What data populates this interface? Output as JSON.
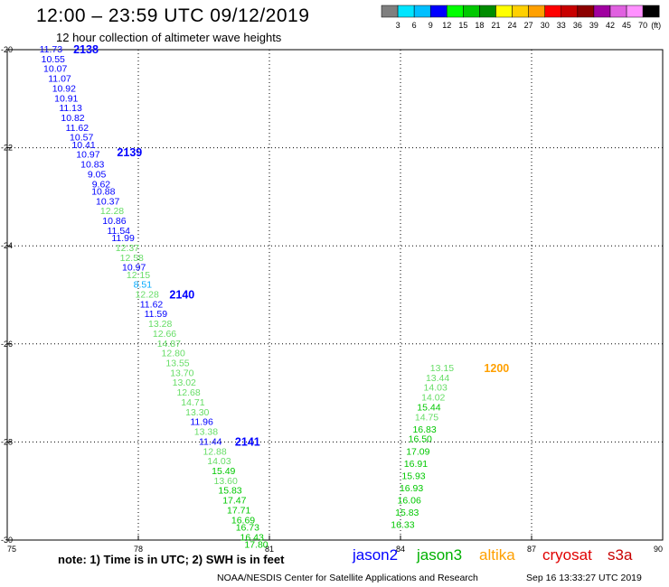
{
  "header": {
    "title": "12:00 – 23:59 UTC 09/12/2019",
    "subtitle": "12 hour collection of altimeter wave heights"
  },
  "colorbar": {
    "labels": [
      "3",
      "6",
      "9",
      "12",
      "15",
      "18",
      "21",
      "24",
      "27",
      "30",
      "33",
      "36",
      "39",
      "42",
      "45",
      "70"
    ],
    "unit": "(ft)",
    "colors": [
      "#7f7f7f",
      "#00e5ff",
      "#00bfff",
      "#0000ff",
      "#00ff00",
      "#00c800",
      "#008c00",
      "#ffff00",
      "#ffd000",
      "#ffa000",
      "#ff0000",
      "#c80000",
      "#8c0000",
      "#a000a0",
      "#e060e0",
      "#ff90ff",
      "#000000"
    ]
  },
  "legend": {
    "jason2": {
      "label": "jason2",
      "color": "#0000ff"
    },
    "jason3": {
      "label": "jason3",
      "color": "#00b000"
    },
    "altika": {
      "label": "altika",
      "color": "#ffa000"
    },
    "cryosat": {
      "label": "cryosat",
      "color": "#e00000"
    },
    "s3a": {
      "label": "s3a",
      "color": "#c80000"
    }
  },
  "footer": {
    "note": "note:  1) Time is in UTC;  2) SWH is in feet",
    "credit": "NOAA/NESDIS Center for Satellite Applications and Research",
    "timestamp": "Sep 16 13:33:27 UTC 2019"
  },
  "chart_data": {
    "type": "scatter",
    "title": "12:00 – 23:59 UTC 09/12/2019",
    "subtitle": "12 hour collection of altimeter wave heights",
    "xlim": [
      75,
      90
    ],
    "ylim": [
      -30,
      -20
    ],
    "x_ticks": [
      "75",
      "78",
      "81",
      "84",
      "87",
      "90"
    ],
    "y_ticks": [
      "-20",
      "-22",
      "-24",
      "-26",
      "-28",
      "-30"
    ],
    "grid": true,
    "passes": [
      {
        "label": "2138",
        "lon": 76.8,
        "lat": -20.0,
        "color": "#0000ff"
      },
      {
        "label": "2139",
        "lon": 77.8,
        "lat": -22.1,
        "color": "#0000ff"
      },
      {
        "label": "2140",
        "lon": 79.0,
        "lat": -25.0,
        "color": "#0000ff"
      },
      {
        "label": "2141",
        "lon": 80.5,
        "lat": -28.0,
        "color": "#0000ff"
      },
      {
        "label": "1200",
        "lon": 86.2,
        "lat": -26.5,
        "color": "#ffa000"
      }
    ],
    "points": [
      {
        "lon": 76.0,
        "lat": -20.0,
        "value": "11.73",
        "color": "#0000ff"
      },
      {
        "lon": 76.05,
        "lat": -20.2,
        "value": "10.55",
        "color": "#0000ff"
      },
      {
        "lon": 76.1,
        "lat": -20.4,
        "value": "10.07",
        "color": "#0000ff"
      },
      {
        "lon": 76.2,
        "lat": -20.6,
        "value": "11.07",
        "color": "#0000ff"
      },
      {
        "lon": 76.3,
        "lat": -20.8,
        "value": "10.92",
        "color": "#0000ff"
      },
      {
        "lon": 76.35,
        "lat": -21.0,
        "value": "10.91",
        "color": "#0000ff"
      },
      {
        "lon": 76.45,
        "lat": -21.2,
        "value": "11.13",
        "color": "#0000ff"
      },
      {
        "lon": 76.5,
        "lat": -21.4,
        "value": "10.82",
        "color": "#0000ff"
      },
      {
        "lon": 76.6,
        "lat": -21.6,
        "value": "11.62",
        "color": "#0000ff"
      },
      {
        "lon": 76.7,
        "lat": -21.8,
        "value": "10.57",
        "color": "#0000ff"
      },
      {
        "lon": 76.75,
        "lat": -21.95,
        "value": "10.41",
        "color": "#0000ff"
      },
      {
        "lon": 76.85,
        "lat": -22.15,
        "value": "10.97",
        "color": "#0000ff"
      },
      {
        "lon": 76.95,
        "lat": -22.35,
        "value": "10.83",
        "color": "#0000ff"
      },
      {
        "lon": 77.05,
        "lat": -22.55,
        "value": "9.05",
        "color": "#0000ff"
      },
      {
        "lon": 77.15,
        "lat": -22.75,
        "value": "9.62",
        "color": "#0000ff"
      },
      {
        "lon": 77.2,
        "lat": -22.9,
        "value": "10.88",
        "color": "#0000ff"
      },
      {
        "lon": 77.3,
        "lat": -23.1,
        "value": "10.37",
        "color": "#0000ff"
      },
      {
        "lon": 77.4,
        "lat": -23.3,
        "value": "12.28",
        "color": "#66dd66"
      },
      {
        "lon": 77.45,
        "lat": -23.5,
        "value": "10.86",
        "color": "#0000ff"
      },
      {
        "lon": 77.55,
        "lat": -23.7,
        "value": "11.54",
        "color": "#0000ff"
      },
      {
        "lon": 77.65,
        "lat": -23.85,
        "value": "11.99",
        "color": "#0000ff"
      },
      {
        "lon": 77.75,
        "lat": -24.05,
        "value": "12.37",
        "color": "#66dd66"
      },
      {
        "lon": 77.85,
        "lat": -24.25,
        "value": "12.58",
        "color": "#66dd66"
      },
      {
        "lon": 77.9,
        "lat": -24.45,
        "value": "10.97",
        "color": "#0000ff"
      },
      {
        "lon": 78.0,
        "lat": -24.6,
        "value": "12.15",
        "color": "#66dd66"
      },
      {
        "lon": 78.1,
        "lat": -24.8,
        "value": "8.51",
        "color": "#00aaff"
      },
      {
        "lon": 78.2,
        "lat": -25.0,
        "value": "12.28",
        "color": "#66dd66"
      },
      {
        "lon": 78.3,
        "lat": -25.2,
        "value": "11.62",
        "color": "#0000ff"
      },
      {
        "lon": 78.4,
        "lat": -25.4,
        "value": "11.59",
        "color": "#0000ff"
      },
      {
        "lon": 78.5,
        "lat": -25.6,
        "value": "13.28",
        "color": "#66dd66"
      },
      {
        "lon": 78.6,
        "lat": -25.8,
        "value": "12.66",
        "color": "#66dd66"
      },
      {
        "lon": 78.7,
        "lat": -26.0,
        "value": "14.87",
        "color": "#66dd66"
      },
      {
        "lon": 78.8,
        "lat": -26.2,
        "value": "12.80",
        "color": "#66dd66"
      },
      {
        "lon": 78.9,
        "lat": -26.4,
        "value": "13.55",
        "color": "#66dd66"
      },
      {
        "lon": 79.0,
        "lat": -26.6,
        "value": "13.70",
        "color": "#66dd66"
      },
      {
        "lon": 79.05,
        "lat": -26.8,
        "value": "13.02",
        "color": "#66dd66"
      },
      {
        "lon": 79.15,
        "lat": -27.0,
        "value": "12.68",
        "color": "#66dd66"
      },
      {
        "lon": 79.25,
        "lat": -27.2,
        "value": "14.71",
        "color": "#66dd66"
      },
      {
        "lon": 79.35,
        "lat": -27.4,
        "value": "13.30",
        "color": "#66dd66"
      },
      {
        "lon": 79.45,
        "lat": -27.6,
        "value": "11.96",
        "color": "#0000ff"
      },
      {
        "lon": 79.55,
        "lat": -27.8,
        "value": "13.38",
        "color": "#66dd66"
      },
      {
        "lon": 79.65,
        "lat": -28.0,
        "value": "11.44",
        "color": "#0000ff"
      },
      {
        "lon": 79.75,
        "lat": -28.2,
        "value": "12.88",
        "color": "#66dd66"
      },
      {
        "lon": 79.85,
        "lat": -28.4,
        "value": "14.03",
        "color": "#66dd66"
      },
      {
        "lon": 79.95,
        "lat": -28.6,
        "value": "15.49",
        "color": "#00c800"
      },
      {
        "lon": 80.0,
        "lat": -28.8,
        "value": "13.60",
        "color": "#66dd66"
      },
      {
        "lon": 80.1,
        "lat": -29.0,
        "value": "15.83",
        "color": "#00c800"
      },
      {
        "lon": 80.2,
        "lat": -29.2,
        "value": "17.47",
        "color": "#00c800"
      },
      {
        "lon": 80.3,
        "lat": -29.4,
        "value": "17.71",
        "color": "#00c800"
      },
      {
        "lon": 80.4,
        "lat": -29.6,
        "value": "16.69",
        "color": "#00c800"
      },
      {
        "lon": 80.5,
        "lat": -29.75,
        "value": "16.73",
        "color": "#00c800"
      },
      {
        "lon": 80.6,
        "lat": -29.95,
        "value": "16.43",
        "color": "#00c800"
      },
      {
        "lon": 80.7,
        "lat": -30.1,
        "value": "17.80",
        "color": "#00c800"
      },
      {
        "lon": 84.95,
        "lat": -26.5,
        "value": "13.15",
        "color": "#66dd66"
      },
      {
        "lon": 84.85,
        "lat": -26.7,
        "value": "13.44",
        "color": "#66dd66"
      },
      {
        "lon": 84.8,
        "lat": -26.9,
        "value": "14.03",
        "color": "#66dd66"
      },
      {
        "lon": 84.75,
        "lat": -27.1,
        "value": "14.02",
        "color": "#66dd66"
      },
      {
        "lon": 84.65,
        "lat": -27.3,
        "value": "15.44",
        "color": "#00c800"
      },
      {
        "lon": 84.6,
        "lat": -27.5,
        "value": "14.75",
        "color": "#66dd66"
      },
      {
        "lon": 84.55,
        "lat": -27.75,
        "value": "16.83",
        "color": "#00c800"
      },
      {
        "lon": 84.45,
        "lat": -27.95,
        "value": "16.50",
        "color": "#00c800"
      },
      {
        "lon": 84.4,
        "lat": -28.2,
        "value": "17.09",
        "color": "#00c800"
      },
      {
        "lon": 84.35,
        "lat": -28.45,
        "value": "16.91",
        "color": "#00c800"
      },
      {
        "lon": 84.3,
        "lat": -28.7,
        "value": "15.93",
        "color": "#00c800"
      },
      {
        "lon": 84.25,
        "lat": -28.95,
        "value": "16.93",
        "color": "#00c800"
      },
      {
        "lon": 84.2,
        "lat": -29.2,
        "value": "16.06",
        "color": "#00c800"
      },
      {
        "lon": 84.15,
        "lat": -29.45,
        "value": "15.83",
        "color": "#00c800"
      },
      {
        "lon": 84.05,
        "lat": -29.7,
        "value": "16.33",
        "color": "#00c800"
      }
    ]
  }
}
